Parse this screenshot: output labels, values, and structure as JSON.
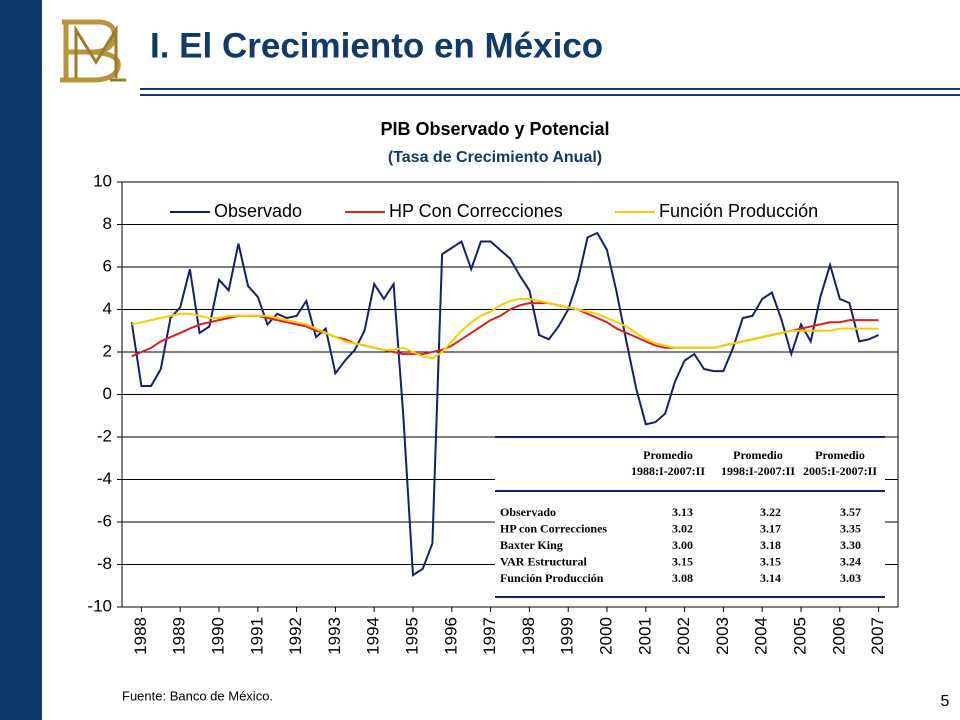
{
  "header": {
    "title": "I. El Crecimiento en México"
  },
  "chart_data": {
    "type": "line",
    "title": "PIB Observado y Potencial",
    "subtitle": "(Tasa de Crecimiento Anual)",
    "x": [
      1988.25,
      1988.5,
      1988.75,
      1989,
      1989.25,
      1989.5,
      1989.75,
      1990,
      1990.25,
      1990.5,
      1990.75,
      1991,
      1991.25,
      1991.5,
      1991.75,
      1992,
      1992.25,
      1992.5,
      1992.75,
      1993,
      1993.25,
      1993.5,
      1993.75,
      1994,
      1994.25,
      1994.5,
      1994.75,
      1995,
      1995.25,
      1995.5,
      1995.75,
      1996,
      1996.25,
      1996.5,
      1996.75,
      1997,
      1997.25,
      1997.5,
      1997.75,
      1998,
      1998.25,
      1998.5,
      1998.75,
      1999,
      1999.25,
      1999.5,
      1999.75,
      2000,
      2000.25,
      2000.5,
      2000.75,
      2001,
      2001.25,
      2001.5,
      2001.75,
      2002,
      2002.25,
      2002.5,
      2002.75,
      2003,
      2003.25,
      2003.5,
      2003.75,
      2004,
      2004.25,
      2004.5,
      2004.75,
      2005,
      2005.25,
      2005.5,
      2005.75,
      2006,
      2006.25,
      2006.5,
      2006.75,
      2007,
      2007.25,
      2007.5
    ],
    "series": [
      {
        "name": "Observado",
        "color": "#14206e",
        "values": [
          3.4,
          0.4,
          0.4,
          1.2,
          3.6,
          4.1,
          5.9,
          2.9,
          3.2,
          5.4,
          4.9,
          7.1,
          5.1,
          4.6,
          3.3,
          3.8,
          3.6,
          3.7,
          4.4,
          2.7,
          3.1,
          1.0,
          1.6,
          2.1,
          3.0,
          5.2,
          4.5,
          5.2,
          -1.0,
          -8.5,
          -8.2,
          -7.0,
          6.6,
          6.9,
          7.2,
          5.9,
          7.2,
          7.2,
          6.8,
          6.4,
          5.6,
          4.9,
          2.8,
          2.6,
          3.2,
          4.0,
          5.4,
          7.4,
          7.6,
          6.8,
          4.8,
          2.5,
          0.3,
          -1.4,
          -1.3,
          -0.9,
          0.6,
          1.6,
          1.9,
          1.2,
          1.1,
          1.1,
          2.2,
          3.6,
          3.7,
          4.5,
          4.8,
          3.5,
          1.9,
          3.3,
          2.5,
          4.6,
          6.1,
          4.5,
          4.3,
          2.5,
          2.6,
          2.8
        ]
      },
      {
        "name": "HP Con Correcciones",
        "color": "#e0201b",
        "values": [
          1.8,
          2.0,
          2.2,
          2.5,
          2.7,
          2.9,
          3.1,
          3.3,
          3.4,
          3.5,
          3.6,
          3.7,
          3.7,
          3.7,
          3.6,
          3.5,
          3.4,
          3.3,
          3.2,
          3.0,
          2.9,
          2.7,
          2.6,
          2.4,
          2.3,
          2.2,
          2.1,
          2.0,
          1.9,
          1.9,
          1.9,
          2.0,
          2.1,
          2.3,
          2.6,
          2.9,
          3.2,
          3.5,
          3.7,
          4.0,
          4.2,
          4.3,
          4.3,
          4.3,
          4.2,
          4.1,
          4.0,
          3.8,
          3.6,
          3.4,
          3.1,
          2.9,
          2.7,
          2.5,
          2.3,
          2.2,
          2.2,
          2.2,
          2.2,
          2.2,
          2.2,
          2.3,
          2.4,
          2.5,
          2.6,
          2.7,
          2.8,
          2.9,
          3.0,
          3.1,
          3.2,
          3.3,
          3.4,
          3.4,
          3.5,
          3.5,
          3.5,
          3.5
        ]
      },
      {
        "name": "Función Producción",
        "color": "#f5d000",
        "values": [
          3.3,
          3.4,
          3.5,
          3.6,
          3.7,
          3.8,
          3.8,
          3.7,
          3.6,
          3.6,
          3.7,
          3.7,
          3.7,
          3.7,
          3.7,
          3.6,
          3.5,
          3.4,
          3.3,
          3.1,
          2.9,
          2.7,
          2.5,
          2.4,
          2.3,
          2.2,
          2.1,
          2.1,
          2.2,
          2.0,
          1.8,
          1.7,
          2.0,
          2.5,
          3.0,
          3.4,
          3.7,
          3.9,
          4.2,
          4.4,
          4.5,
          4.5,
          4.4,
          4.3,
          4.2,
          4.1,
          4.0,
          3.9,
          3.8,
          3.6,
          3.4,
          3.2,
          2.9,
          2.6,
          2.4,
          2.3,
          2.2,
          2.2,
          2.2,
          2.2,
          2.2,
          2.3,
          2.4,
          2.5,
          2.6,
          2.7,
          2.8,
          2.9,
          3.0,
          3.0,
          3.0,
          3.0,
          3.0,
          3.1,
          3.1,
          3.1,
          3.1,
          3.1
        ]
      }
    ],
    "xlim": [
      1988,
      2008
    ],
    "xticks": [
      {
        "value": 1988.5,
        "label": "1988"
      },
      {
        "value": 1989.5,
        "label": "1989"
      },
      {
        "value": 1990.5,
        "label": "1990"
      },
      {
        "value": 1991.5,
        "label": "1991"
      },
      {
        "value": 1992.5,
        "label": "1992"
      },
      {
        "value": 1993.5,
        "label": "1993"
      },
      {
        "value": 1994.5,
        "label": "1994"
      },
      {
        "value": 1995.5,
        "label": "1995"
      },
      {
        "value": 1996.5,
        "label": "1996"
      },
      {
        "value": 1997.5,
        "label": "1997"
      },
      {
        "value": 1998.5,
        "label": "1998"
      },
      {
        "value": 1999.5,
        "label": "1999"
      },
      {
        "value": 2000.5,
        "label": "2000"
      },
      {
        "value": 2001.5,
        "label": "2001"
      },
      {
        "value": 2002.5,
        "label": "2002"
      },
      {
        "value": 2003.5,
        "label": "2003"
      },
      {
        "value": 2004.5,
        "label": "2004"
      },
      {
        "value": 2005.5,
        "label": "2005"
      },
      {
        "value": 2006.5,
        "label": "2006"
      },
      {
        "value": 2007.5,
        "label": "2007"
      }
    ],
    "ylim": [
      -10,
      10
    ],
    "yticks": [
      -10,
      -8,
      -6,
      -4,
      -2,
      0,
      2,
      4,
      6,
      8,
      10
    ],
    "grid": true,
    "legend": "top",
    "table": {
      "headers": [
        [
          "Promedio",
          "1988:I-2007:II"
        ],
        [
          "Promedio",
          "1998:I-2007:II"
        ],
        [
          "Promedio",
          "2005:I-2007:II"
        ]
      ],
      "rows": [
        [
          "Observado",
          "3.13",
          "3.22",
          "3.57"
        ],
        [
          "HP con Correcciones",
          "3.02",
          "3.17",
          "3.35"
        ],
        [
          "Baxter King",
          "3.00",
          "3.18",
          "3.30"
        ],
        [
          "VAR Estructural",
          "3.15",
          "3.15",
          "3.24"
        ],
        [
          "Función Producción",
          "3.08",
          "3.14",
          "3.03"
        ]
      ]
    }
  },
  "footer": {
    "source": "Fuente: Banco de México.",
    "page": "5"
  }
}
